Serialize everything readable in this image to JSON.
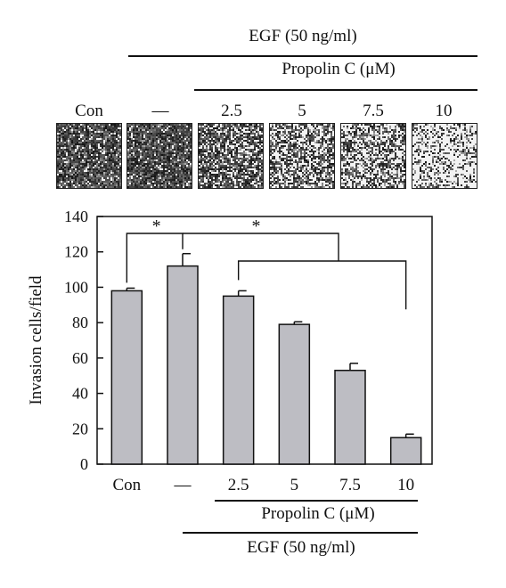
{
  "top": {
    "egf_label": "EGF (50 ng/ml)",
    "propolin_label": "Propolin C (μM)",
    "conditions": [
      "Con",
      "—",
      "2.5",
      "5",
      "7.5",
      "10"
    ]
  },
  "micrographs": [
    {
      "condition": "Con",
      "density": 0.78
    },
    {
      "condition": "—",
      "density": 0.82
    },
    {
      "condition": "2.5",
      "density": 0.62
    },
    {
      "condition": "5",
      "density": 0.5
    },
    {
      "condition": "7.5",
      "density": 0.42
    },
    {
      "condition": "10",
      "density": 0.24
    }
  ],
  "chart_data": {
    "type": "bar",
    "categories": [
      "Con",
      "—",
      "2.5",
      "5",
      "7.5",
      "10"
    ],
    "values": [
      98,
      112,
      95,
      79,
      53,
      15
    ],
    "errors": [
      1.5,
      7,
      3,
      1.5,
      4,
      2
    ],
    "ylabel": "Invasion cells/field",
    "ylim": [
      0,
      140
    ],
    "yticks": [
      0,
      20,
      40,
      60,
      80,
      100,
      120,
      140
    ],
    "grid": false,
    "bar_color": "#bdbdc3",
    "significance": [
      {
        "label": "*",
        "from": "Con",
        "to": "—"
      },
      {
        "label": "*",
        "from": "—",
        "to": [
          "2.5",
          "10"
        ]
      }
    ],
    "bottom_labels": {
      "propolin": "Propolin C (μM)",
      "egf": "EGF (50 ng/ml)"
    }
  }
}
